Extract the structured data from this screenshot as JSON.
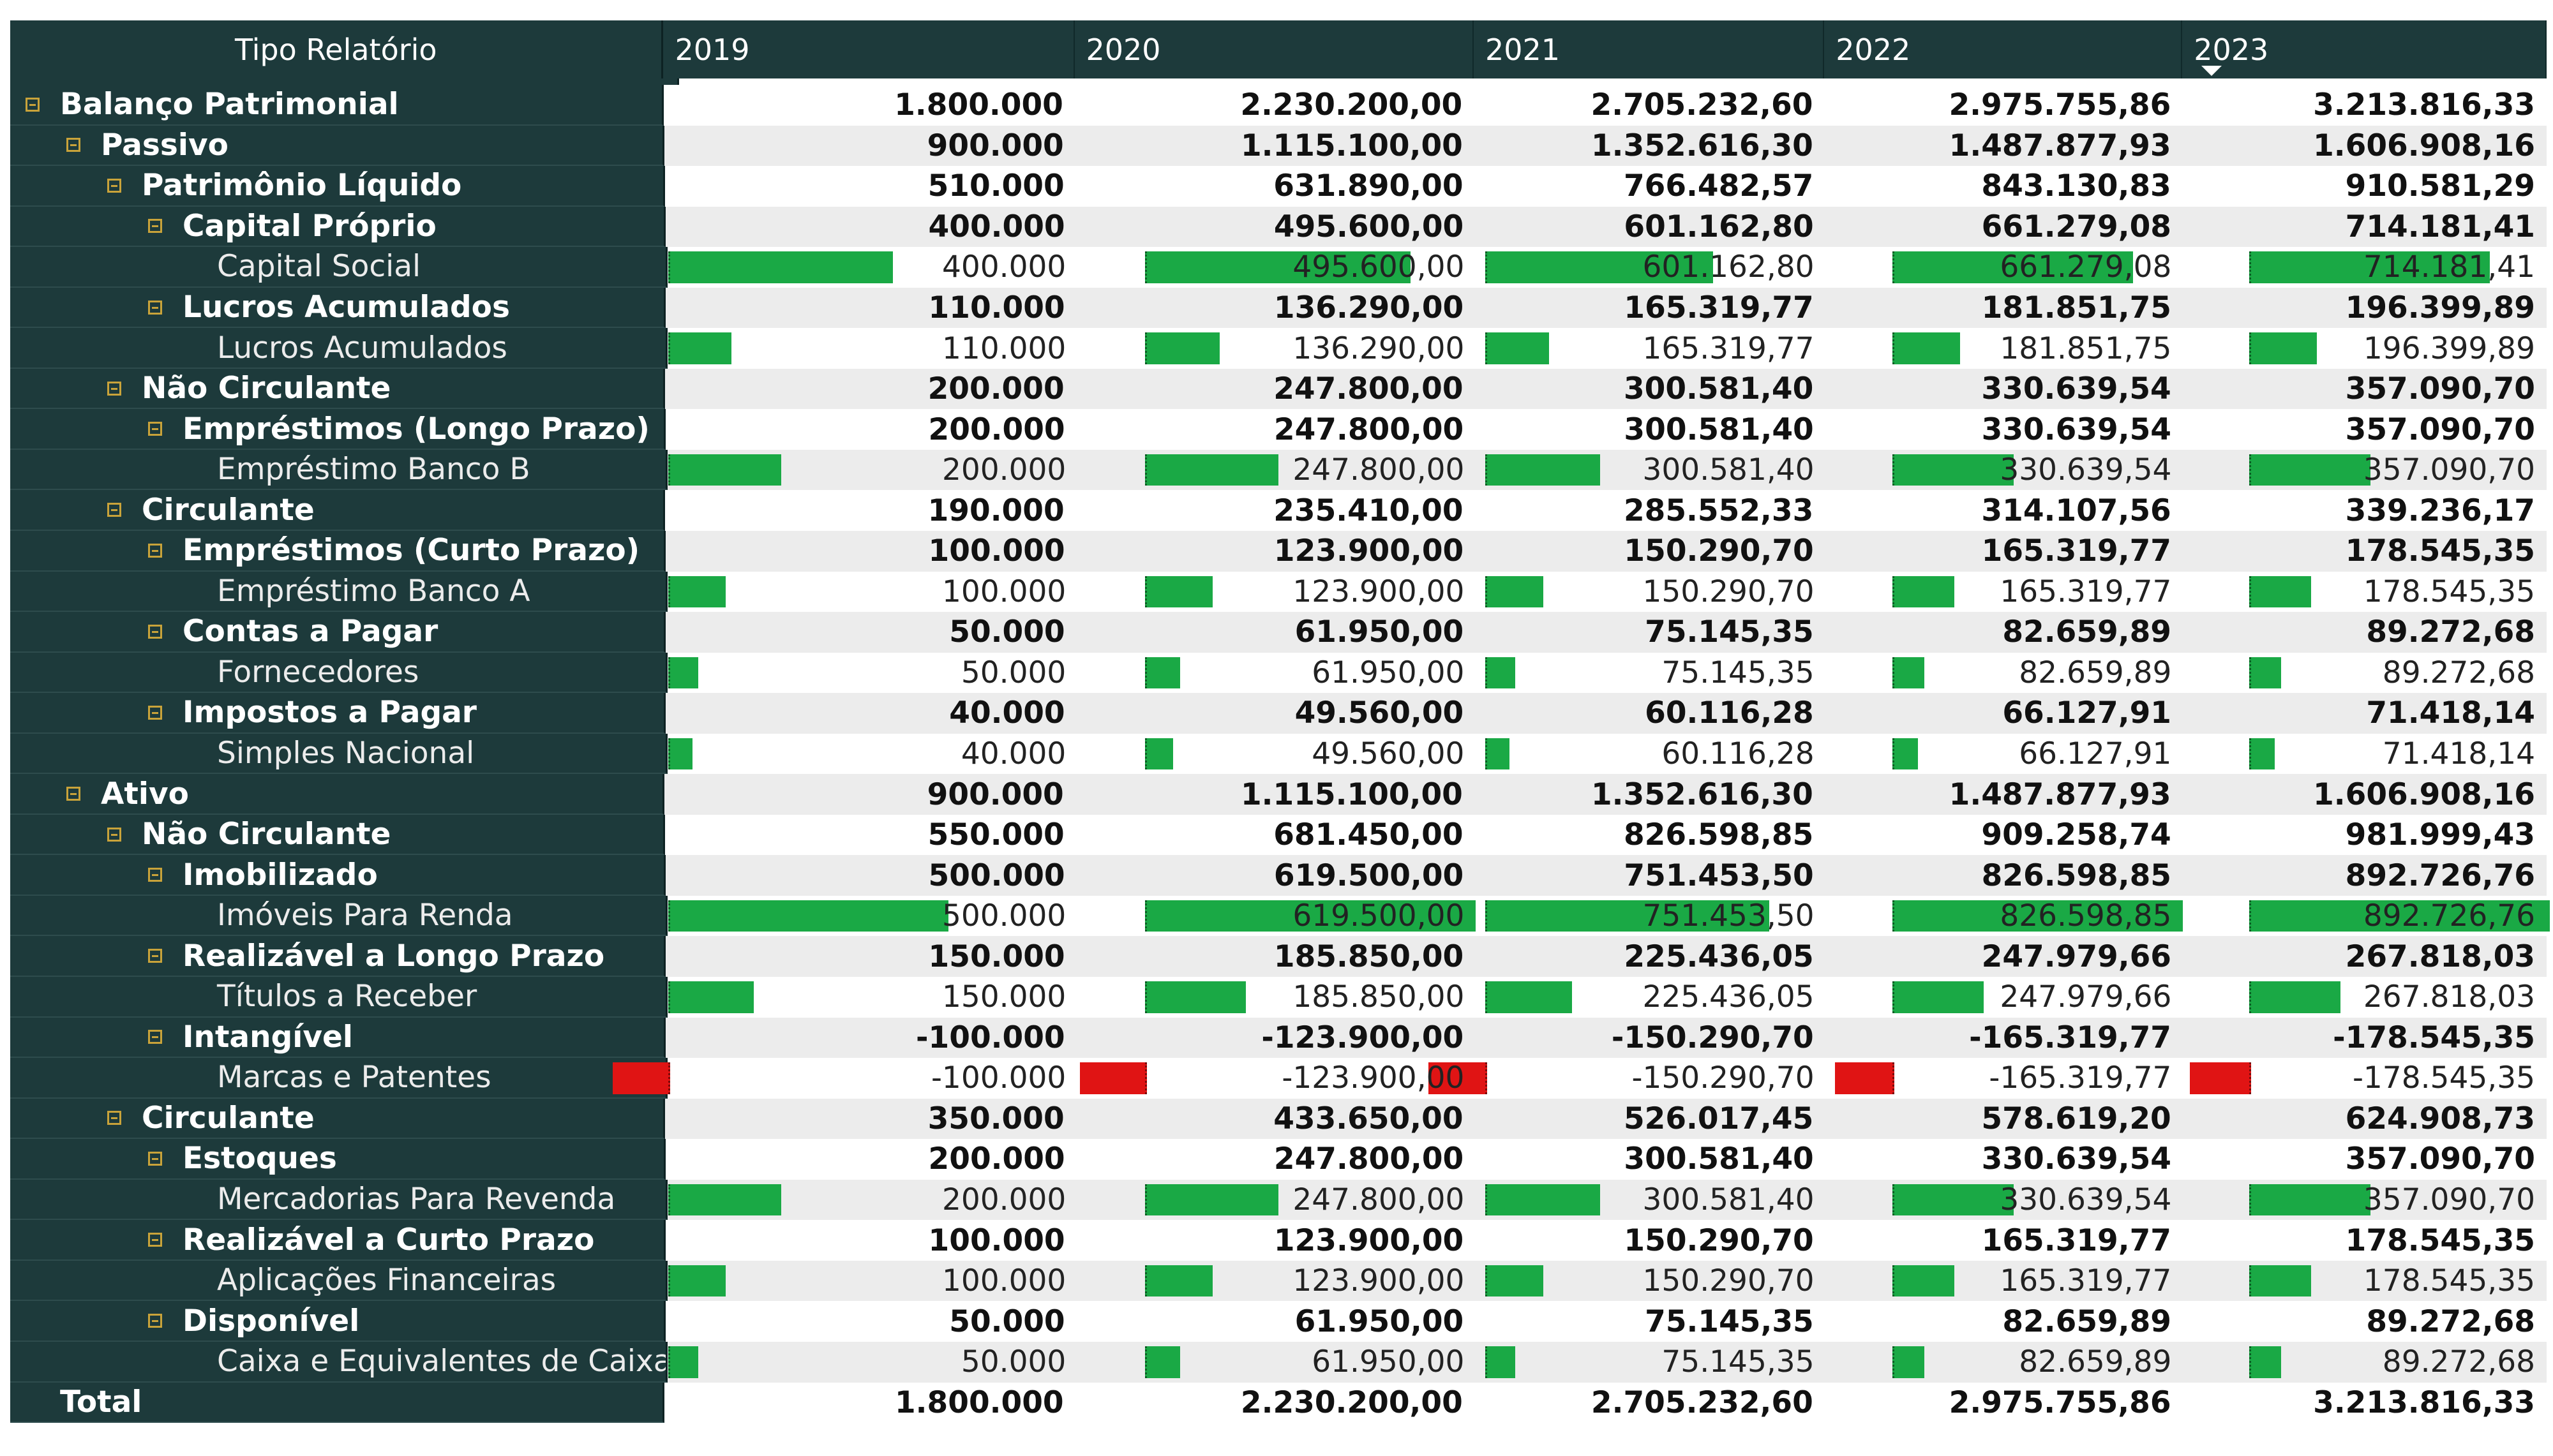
{
  "header": {
    "row_label": "Tipo Relatório",
    "years": [
      "2019",
      "2020",
      "2021",
      "2022",
      "2023"
    ],
    "sorted_year_index": 4
  },
  "colors": {
    "header_bg": "#1d3a3b",
    "bar_positive": "#1aa945",
    "bar_negative": "#e01414",
    "toggle": "#c9a33a",
    "stripe": "#ececec"
  },
  "bar_scale_max": [
    500,
    619.5,
    751.4535,
    826.59885,
    892.72676
  ],
  "rows": [
    {
      "label": "Balanço Patrimonial",
      "level": 0,
      "type": "group",
      "values": [
        "1.800.000",
        "2.230.200,00",
        "2.705.232,60",
        "2.975.755,86",
        "3.213.816,33"
      ]
    },
    {
      "label": "Passivo",
      "level": 1,
      "type": "group",
      "values": [
        "900.000",
        "1.115.100,00",
        "1.352.616,30",
        "1.487.877,93",
        "1.606.908,16"
      ]
    },
    {
      "label": "Patrimônio Líquido",
      "level": 2,
      "type": "group",
      "values": [
        "510.000",
        "631.890,00",
        "766.482,57",
        "843.130,83",
        "910.581,29"
      ]
    },
    {
      "label": "Capital Próprio",
      "level": 3,
      "type": "group",
      "values": [
        "400.000",
        "495.600,00",
        "601.162,80",
        "661.279,08",
        "714.181,41"
      ]
    },
    {
      "label": "Capital Social",
      "level": 4,
      "type": "leaf",
      "values": [
        "400.000",
        "495.600,00",
        "601.162,80",
        "661.279,08",
        "714.181,41"
      ],
      "amounts": [
        400,
        495.6,
        601.1628,
        661.27908,
        714.18141
      ]
    },
    {
      "label": "Lucros Acumulados",
      "level": 3,
      "type": "group",
      "values": [
        "110.000",
        "136.290,00",
        "165.319,77",
        "181.851,75",
        "196.399,89"
      ]
    },
    {
      "label": "Lucros Acumulados",
      "level": 4,
      "type": "leaf",
      "values": [
        "110.000",
        "136.290,00",
        "165.319,77",
        "181.851,75",
        "196.399,89"
      ],
      "amounts": [
        110,
        136.29,
        165.31977,
        181.85175,
        196.39989
      ]
    },
    {
      "label": "Não Circulante",
      "level": 2,
      "type": "group",
      "values": [
        "200.000",
        "247.800,00",
        "300.581,40",
        "330.639,54",
        "357.090,70"
      ]
    },
    {
      "label": "Empréstimos (Longo Prazo)",
      "level": 3,
      "type": "group",
      "values": [
        "200.000",
        "247.800,00",
        "300.581,40",
        "330.639,54",
        "357.090,70"
      ]
    },
    {
      "label": "Empréstimo Banco B",
      "level": 4,
      "type": "leaf",
      "values": [
        "200.000",
        "247.800,00",
        "300.581,40",
        "330.639,54",
        "357.090,70"
      ],
      "amounts": [
        200,
        247.8,
        300.5814,
        330.63954,
        357.0907
      ]
    },
    {
      "label": "Circulante",
      "level": 2,
      "type": "group",
      "values": [
        "190.000",
        "235.410,00",
        "285.552,33",
        "314.107,56",
        "339.236,17"
      ]
    },
    {
      "label": "Empréstimos (Curto Prazo)",
      "level": 3,
      "type": "group",
      "values": [
        "100.000",
        "123.900,00",
        "150.290,70",
        "165.319,77",
        "178.545,35"
      ]
    },
    {
      "label": "Empréstimo Banco A",
      "level": 4,
      "type": "leaf",
      "values": [
        "100.000",
        "123.900,00",
        "150.290,70",
        "165.319,77",
        "178.545,35"
      ],
      "amounts": [
        100,
        123.9,
        150.2907,
        165.31977,
        178.54535
      ]
    },
    {
      "label": "Contas a Pagar",
      "level": 3,
      "type": "group",
      "values": [
        "50.000",
        "61.950,00",
        "75.145,35",
        "82.659,89",
        "89.272,68"
      ]
    },
    {
      "label": "Fornecedores",
      "level": 4,
      "type": "leaf",
      "values": [
        "50.000",
        "61.950,00",
        "75.145,35",
        "82.659,89",
        "89.272,68"
      ],
      "amounts": [
        50,
        61.95,
        75.14535,
        82.65989,
        89.27268
      ]
    },
    {
      "label": "Impostos a Pagar",
      "level": 3,
      "type": "group",
      "values": [
        "40.000",
        "49.560,00",
        "60.116,28",
        "66.127,91",
        "71.418,14"
      ]
    },
    {
      "label": "Simples Nacional",
      "level": 4,
      "type": "leaf",
      "values": [
        "40.000",
        "49.560,00",
        "60.116,28",
        "66.127,91",
        "71.418,14"
      ],
      "amounts": [
        40,
        49.56,
        60.11628,
        66.12791,
        71.41814
      ]
    },
    {
      "label": "Ativo",
      "level": 1,
      "type": "group",
      "values": [
        "900.000",
        "1.115.100,00",
        "1.352.616,30",
        "1.487.877,93",
        "1.606.908,16"
      ]
    },
    {
      "label": "Não Circulante",
      "level": 2,
      "type": "group",
      "values": [
        "550.000",
        "681.450,00",
        "826.598,85",
        "909.258,74",
        "981.999,43"
      ]
    },
    {
      "label": "Imobilizado",
      "level": 3,
      "type": "group",
      "values": [
        "500.000",
        "619.500,00",
        "751.453,50",
        "826.598,85",
        "892.726,76"
      ]
    },
    {
      "label": "Imóveis Para Renda",
      "level": 4,
      "type": "leaf",
      "values": [
        "500.000",
        "619.500,00",
        "751.453,50",
        "826.598,85",
        "892.726,76"
      ],
      "amounts": [
        500,
        619.5,
        751.4535,
        826.59885,
        892.72676
      ]
    },
    {
      "label": "Realizável a Longo Prazo",
      "level": 3,
      "type": "group",
      "values": [
        "150.000",
        "185.850,00",
        "225.436,05",
        "247.979,66",
        "267.818,03"
      ]
    },
    {
      "label": "Títulos a Receber",
      "level": 4,
      "type": "leaf",
      "values": [
        "150.000",
        "185.850,00",
        "225.436,05",
        "247.979,66",
        "267.818,03"
      ],
      "amounts": [
        150,
        185.85,
        225.43605,
        247.97966,
        267.81803
      ]
    },
    {
      "label": "Intangível",
      "level": 3,
      "type": "group",
      "values": [
        "-100.000",
        "-123.900,00",
        "-150.290,70",
        "-165.319,77",
        "-178.545,35"
      ]
    },
    {
      "label": "Marcas e Patentes",
      "level": 4,
      "type": "leaf",
      "values": [
        "-100.000",
        "-123.900,00",
        "-150.290,70",
        "-165.319,77",
        "-178.545,35"
      ],
      "amounts": [
        -100,
        -123.9,
        -150.2907,
        -165.31977,
        -178.54535
      ]
    },
    {
      "label": "Circulante",
      "level": 2,
      "type": "group",
      "values": [
        "350.000",
        "433.650,00",
        "526.017,45",
        "578.619,20",
        "624.908,73"
      ]
    },
    {
      "label": "Estoques",
      "level": 3,
      "type": "group",
      "values": [
        "200.000",
        "247.800,00",
        "300.581,40",
        "330.639,54",
        "357.090,70"
      ]
    },
    {
      "label": "Mercadorias Para Revenda",
      "level": 4,
      "type": "leaf",
      "values": [
        "200.000",
        "247.800,00",
        "300.581,40",
        "330.639,54",
        "357.090,70"
      ],
      "amounts": [
        200,
        247.8,
        300.5814,
        330.63954,
        357.0907
      ]
    },
    {
      "label": "Realizável a Curto Prazo",
      "level": 3,
      "type": "group",
      "values": [
        "100.000",
        "123.900,00",
        "150.290,70",
        "165.319,77",
        "178.545,35"
      ]
    },
    {
      "label": "Aplicações Financeiras",
      "level": 4,
      "type": "leaf",
      "values": [
        "100.000",
        "123.900,00",
        "150.290,70",
        "165.319,77",
        "178.545,35"
      ],
      "amounts": [
        100,
        123.9,
        150.2907,
        165.31977,
        178.54535
      ]
    },
    {
      "label": "Disponível",
      "level": 3,
      "type": "group",
      "values": [
        "50.000",
        "61.950,00",
        "75.145,35",
        "82.659,89",
        "89.272,68"
      ]
    },
    {
      "label": "Caixa e Equivalentes de Caixa",
      "level": 4,
      "type": "leaf",
      "values": [
        "50.000",
        "61.950,00",
        "75.145,35",
        "82.659,89",
        "89.272,68"
      ],
      "amounts": [
        50,
        61.95,
        75.14535,
        82.65989,
        89.27268
      ]
    },
    {
      "label": "Total",
      "level": 0,
      "type": "total",
      "values": [
        "1.800.000",
        "2.230.200,00",
        "2.705.232,60",
        "2.975.755,86",
        "3.213.816,33"
      ]
    }
  ]
}
